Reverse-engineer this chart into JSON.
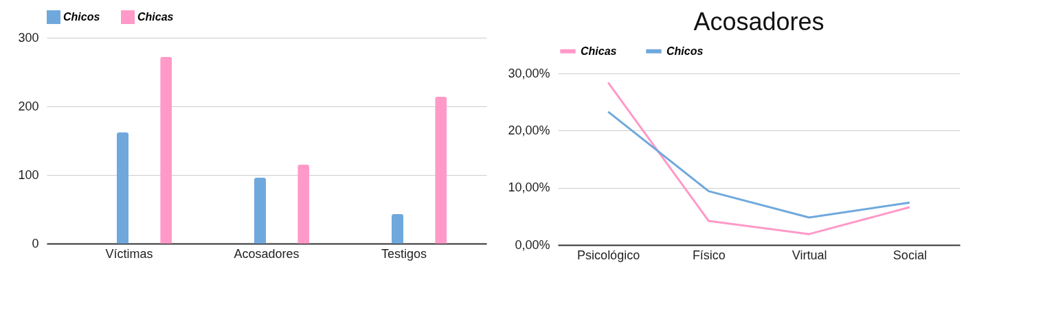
{
  "chart_data": [
    {
      "type": "bar",
      "categories": [
        "Víctimas",
        "Acosadores",
        "Testigos"
      ],
      "series": [
        {
          "name": "Chicos",
          "color": "#6fa8dc",
          "values": [
            162,
            96,
            43
          ]
        },
        {
          "name": "Chicas",
          "color": "#ff99c8",
          "values": [
            272,
            115,
            214
          ]
        }
      ],
      "ylim": [
        0,
        300
      ],
      "yticks": [
        0,
        100,
        200,
        300
      ],
      "grid": "y",
      "legend": "top"
    },
    {
      "type": "line",
      "title": "Acosadores",
      "categories": [
        "Psicológico",
        "Físico",
        "Virtual",
        "Social"
      ],
      "series": [
        {
          "name": "Chicas",
          "color": "#ff99c8",
          "values": [
            28.4,
            4.2,
            1.9,
            6.6
          ]
        },
        {
          "name": "Chicos",
          "color": "#6fa8dc",
          "values": [
            23.3,
            9.4,
            4.8,
            7.4
          ]
        }
      ],
      "ylim": [
        0,
        30
      ],
      "yticks": [
        {
          "value": 0,
          "label": "0,00%"
        },
        {
          "value": 10,
          "label": "10,00%"
        },
        {
          "value": 20,
          "label": "20,00%"
        },
        {
          "value": 30,
          "label": "30,00%"
        }
      ],
      "grid": "y",
      "legend": "top"
    }
  ]
}
